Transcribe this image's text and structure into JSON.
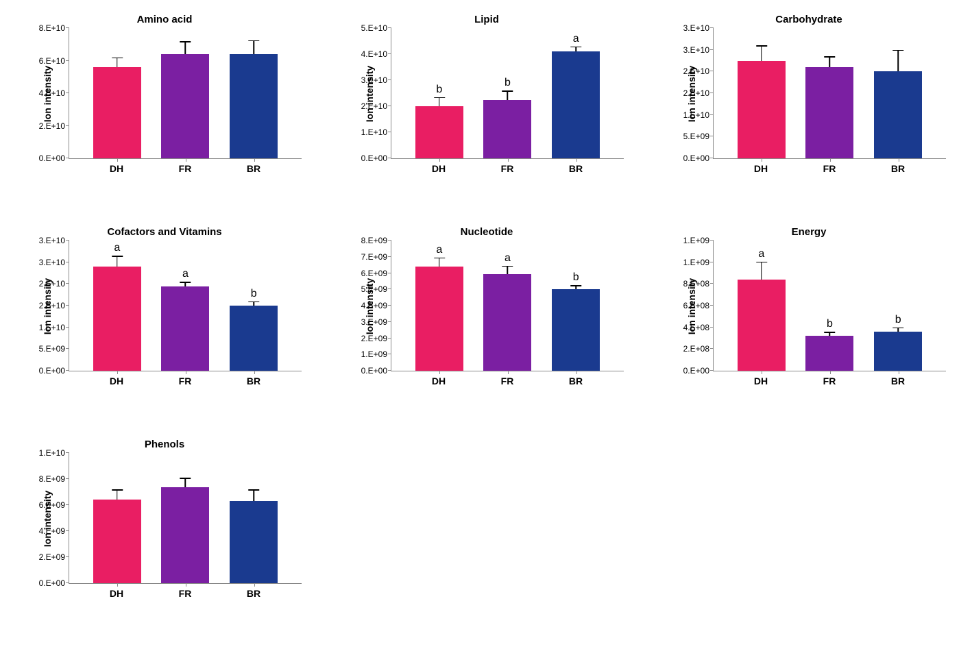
{
  "ylabel": "Ion intensity",
  "categories": [
    "DH",
    "FR",
    "BR"
  ],
  "colors": {
    "DH": "#e91e63",
    "FR": "#7b1fa2",
    "BR": "#1a3a8f"
  },
  "axis_fontsize": 14,
  "title_fontsize": 15,
  "tick_fontsize": 12,
  "sig_fontsize": 16,
  "charts": [
    {
      "title": "Amino acid",
      "ymax": 80000000000.0,
      "ytick_step": 20000000000.0,
      "tick_labels": [
        "0.E+00",
        "2.E+10",
        "4.E+10",
        "6.E+10",
        "8.E+10"
      ],
      "values": [
        56000000000.0,
        64000000000.0,
        64000000000.0
      ],
      "errors": [
        6000000000.0,
        8000000000.0,
        8500000000.0
      ],
      "sig": [
        "",
        "",
        ""
      ]
    },
    {
      "title": "Lipid",
      "ymax": 50000000000.0,
      "ytick_step": 10000000000.0,
      "tick_labels": [
        "0.E+00",
        "1.E+10",
        "2.E+10",
        "3.E+10",
        "4.E+10",
        "5.E+10"
      ],
      "values": [
        20000000000.0,
        22500000000.0,
        41000000000.0
      ],
      "errors": [
        3500000000.0,
        3500000000.0,
        2000000000.0
      ],
      "sig": [
        "b",
        "b",
        "a"
      ]
    },
    {
      "title": "Carbohydrate",
      "ymax": 30000000000.0,
      "ytick_step": 5000000000.0,
      "tick_labels": [
        "0.E+00",
        "5.E+09",
        "1.E+10",
        "2.E+10",
        "2.E+10",
        "3.E+10",
        "3.E+10"
      ],
      "values": [
        22500000000.0,
        21000000000.0,
        20000000000.0
      ],
      "errors": [
        3500000000.0,
        2500000000.0,
        5000000000.0
      ],
      "sig": [
        "",
        "",
        ""
      ]
    },
    {
      "title": "Cofactors and Vitamins",
      "ymax": 30000000000.0,
      "ytick_step": 5000000000.0,
      "tick_labels": [
        "0.E+00",
        "5.E+09",
        "1.E+10",
        "2.E+10",
        "2.E+10",
        "3.E+10",
        "3.E+10"
      ],
      "values": [
        24000000000.0,
        19500000000.0,
        15000000000.0
      ],
      "errors": [
        2500000000.0,
        1000000000.0,
        1000000000.0
      ],
      "sig": [
        "a",
        "a",
        "b"
      ]
    },
    {
      "title": "Nucleotide",
      "ymax": 8000000000.0,
      "ytick_step": 1000000000.0,
      "tick_labels": [
        "0.E+00",
        "1.E+09",
        "2.E+09",
        "3.E+09",
        "4.E+09",
        "5.E+09",
        "6.E+09",
        "7.E+09",
        "8.E+09"
      ],
      "values": [
        6400000000.0,
        5950000000.0,
        5000000000.0
      ],
      "errors": [
        550000000.0,
        500000000.0,
        250000000.0
      ],
      "sig": [
        "a",
        "a",
        "b"
      ]
    },
    {
      "title": "Energy",
      "ymax": 1200000000.0,
      "ytick_step": 200000000.0,
      "tick_labels": [
        "0.E+00",
        "2.E+08",
        "4.E+08",
        "6.E+08",
        "8.E+08",
        "1.E+09",
        "1.E+09"
      ],
      "values": [
        840000000.0,
        320000000.0,
        360000000.0
      ],
      "errors": [
        165000000.0,
        40000000.0,
        40000000.0
      ],
      "sig": [
        "a",
        "b",
        "b"
      ]
    },
    {
      "title": "Phenols",
      "ymax": 10000000000.0,
      "ytick_step": 2000000000.0,
      "tick_labels": [
        "0.E+00",
        "2.E+09",
        "4.E+09",
        "6.E+09",
        "8.E+09",
        "1.E+10"
      ],
      "values": [
        6400000000.0,
        7350000000.0,
        6300000000.0
      ],
      "errors": [
        800000000.0,
        750000000.0,
        900000000.0
      ],
      "sig": [
        "",
        "",
        ""
      ]
    }
  ]
}
